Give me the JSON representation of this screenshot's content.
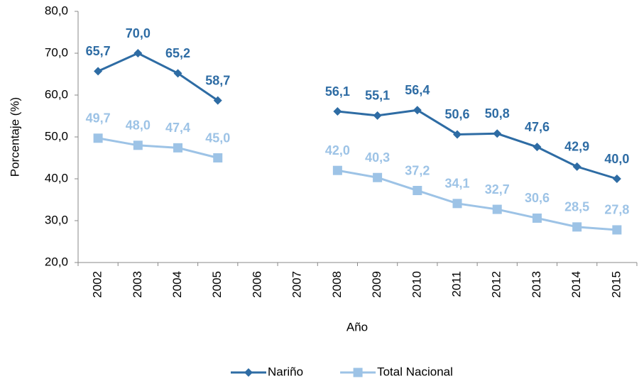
{
  "chart_data": {
    "type": "line",
    "categories": [
      "2002",
      "2003",
      "2004",
      "2005",
      "2006",
      "2007",
      "2008",
      "2009",
      "2010",
      "2011",
      "2012",
      "2013",
      "2014",
      "2015"
    ],
    "series": [
      {
        "name": "Nariño",
        "color": "#2e6ca4",
        "marker": "diamond",
        "values": [
          65.7,
          70.0,
          65.2,
          58.7,
          null,
          null,
          56.1,
          55.1,
          56.4,
          50.6,
          50.8,
          47.6,
          42.9,
          40.0
        ],
        "value_labels": [
          "65,7",
          "70,0",
          "65,2",
          "58,7",
          null,
          null,
          "56,1",
          "55,1",
          "56,4",
          "50,6",
          "50,8",
          "47,6",
          "42,9",
          "40,0"
        ]
      },
      {
        "name": "Total Nacional",
        "color": "#9dc3e6",
        "marker": "square",
        "values": [
          49.7,
          48.0,
          47.4,
          45.0,
          null,
          null,
          42.0,
          40.3,
          37.2,
          34.1,
          32.7,
          30.6,
          28.5,
          27.8
        ],
        "value_labels": [
          "49,7",
          "48,0",
          "47,4",
          "45,0",
          null,
          null,
          "42,0",
          "40,3",
          "37,2",
          "34,1",
          "32,7",
          "30,6",
          "28,5",
          "27,8"
        ]
      }
    ],
    "ylabel": "Porcentaje (%)",
    "xlabel": "Año",
    "ylim": [
      20,
      80
    ],
    "yticks": [
      {
        "value": 20,
        "label": "20,0"
      },
      {
        "value": 30,
        "label": "30,0"
      },
      {
        "value": 40,
        "label": "40,0"
      },
      {
        "value": 50,
        "label": "50,0"
      },
      {
        "value": 60,
        "label": "60,0"
      },
      {
        "value": 70,
        "label": "70,0"
      },
      {
        "value": 80,
        "label": "80,0"
      }
    ],
    "grid": false,
    "legend": "bottom"
  }
}
